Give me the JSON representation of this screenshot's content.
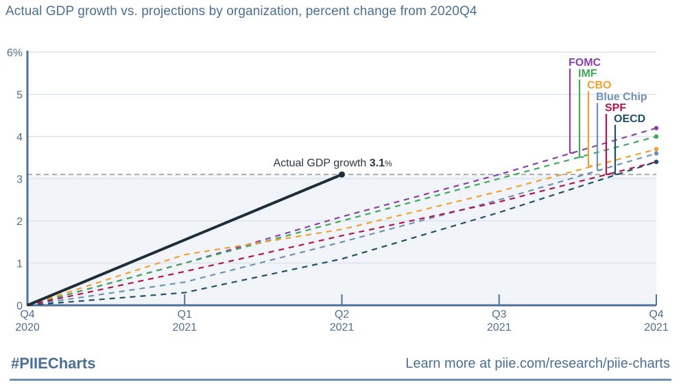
{
  "title": "Actual GDP growth vs. projections by organization, percent change from 2020Q4",
  "footer": {
    "hashtag": "#PIIECharts",
    "link_text": "Learn more at piie.com/research/piie-charts"
  },
  "chart_data": {
    "type": "line",
    "title": "Actual GDP growth vs. projections by organization, percent change from 2020Q4",
    "xlabel": "",
    "ylabel": "",
    "x": [
      "Q4 2020",
      "Q1 2021",
      "Q2 2021",
      "Q3 2021",
      "Q4 2021"
    ],
    "x_ticks": [
      {
        "q": "Q4",
        "year": "2020"
      },
      {
        "q": "Q1",
        "year": "2021"
      },
      {
        "q": "Q2",
        "year": "2021"
      },
      {
        "q": "Q3",
        "year": "2021"
      },
      {
        "q": "Q4",
        "year": "2021"
      }
    ],
    "ylim": [
      0,
      6
    ],
    "y_ticks": [
      "0",
      "1",
      "2",
      "3",
      "4",
      "5",
      "6%"
    ],
    "grid": true,
    "reference_line": {
      "value": 3.1,
      "style": "dashed",
      "shade_below": true
    },
    "actual": {
      "name": "Actual GDP growth",
      "values": [
        0,
        null,
        3.1
      ],
      "annotation_label": "Actual GDP growth",
      "annotation_value": "3.1",
      "annotation_unit": "%",
      "color": "#1f2d3a"
    },
    "series": [
      {
        "name": "FOMC",
        "color": "#8a3fa8",
        "values": [
          0,
          1.0,
          2.1,
          3.1,
          4.2
        ]
      },
      {
        "name": "IMF",
        "color": "#3fa65a",
        "values": [
          0,
          1.0,
          2.0,
          3.0,
          4.0
        ]
      },
      {
        "name": "CBO",
        "color": "#f0a030",
        "values": [
          0,
          1.2,
          1.8,
          2.7,
          3.7
        ]
      },
      {
        "name": "Blue Chip",
        "color": "#6f8fb8",
        "values": [
          0,
          0.55,
          1.5,
          2.5,
          3.6
        ]
      },
      {
        "name": "SPF",
        "color": "#b0124f",
        "values": [
          0,
          0.8,
          1.65,
          2.45,
          3.4
        ]
      },
      {
        "name": "OECD",
        "color": "#1f4e66",
        "values": [
          0,
          0.3,
          1.1,
          2.2,
          3.4
        ]
      }
    ],
    "legend": "top-right, stacked labels with leader lines"
  }
}
